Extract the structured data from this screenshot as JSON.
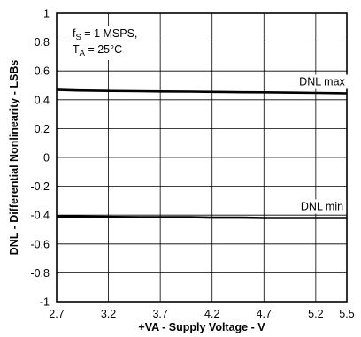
{
  "chart_data": {
    "type": "line",
    "xlabel": "+VA - Supply Voltage - V",
    "ylabel": "DNL - Differential Nonlinearity - LSBs",
    "xlim": [
      2.7,
      5.5
    ],
    "ylim": [
      -1,
      1
    ],
    "x_ticks": [
      "2.7",
      "3.2",
      "3.7",
      "4.2",
      "4.7",
      "5.2",
      "5.5"
    ],
    "y_ticks": [
      "1",
      "0.8",
      "0.6",
      "0.4",
      "0.2",
      "0",
      "-0.2",
      "-0.4",
      "-0.6",
      "-0.8",
      "-1"
    ],
    "grid": true,
    "conditions": {
      "fs_prefix": "f",
      "fs_sub": "S",
      "fs_rest": " = 1 MSPS,",
      "ta_prefix": "T",
      "ta_sub": "A",
      "ta_rest": " = 25°C"
    },
    "series": [
      {
        "name": "DNL max",
        "x": [
          2.7,
          2.9,
          3.2,
          3.5,
          3.7,
          4.0,
          4.2,
          4.5,
          4.7,
          5.0,
          5.2,
          5.5
        ],
        "y": [
          0.47,
          0.465,
          0.462,
          0.46,
          0.458,
          0.457,
          0.455,
          0.453,
          0.452,
          0.45,
          0.448,
          0.445
        ]
      },
      {
        "name": "DNL min",
        "x": [
          2.7,
          2.9,
          3.2,
          3.5,
          3.7,
          4.0,
          4.2,
          4.5,
          4.7,
          5.0,
          5.2,
          5.5
        ],
        "y": [
          -0.41,
          -0.41,
          -0.412,
          -0.415,
          -0.415,
          -0.415,
          -0.418,
          -0.418,
          -0.42,
          -0.42,
          -0.42,
          -0.42
        ]
      }
    ]
  }
}
